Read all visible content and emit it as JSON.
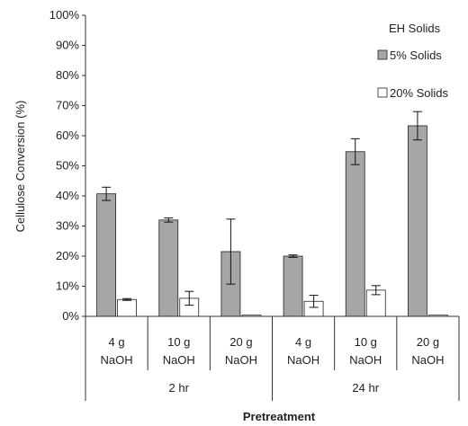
{
  "chart_data": {
    "type": "bar",
    "title": "",
    "ylabel": "Cellulose Conversion (%)",
    "xlabel": "Pretreatment",
    "ylim": [
      0,
      100
    ],
    "yticks": [
      "0%",
      "10%",
      "20%",
      "30%",
      "40%",
      "50%",
      "60%",
      "70%",
      "80%",
      "90%",
      "100%"
    ],
    "categories": [
      {
        "line1": "4 g",
        "line2": "NaOH"
      },
      {
        "line1": "10 g",
        "line2": "NaOH"
      },
      {
        "line1": "20 g",
        "line2": "NaOH"
      },
      {
        "line1": "4 g",
        "line2": "NaOH"
      },
      {
        "line1": "10 g",
        "line2": "NaOH"
      },
      {
        "line1": "20 g",
        "line2": "NaOH"
      }
    ],
    "groups": [
      {
        "label": "2 hr",
        "categories": [
          0,
          1,
          2
        ]
      },
      {
        "label": "24 hr",
        "categories": [
          3,
          4,
          5
        ]
      }
    ],
    "legend": {
      "title": "EH Solids",
      "position": "top-right"
    },
    "series": [
      {
        "name": "5% Solids",
        "color": "#a6a6a6",
        "values": [
          40.7,
          32.0,
          21.5,
          20.0,
          54.7,
          63.3
        ],
        "errors": [
          2.2,
          0.7,
          10.8,
          0.4,
          4.3,
          4.7
        ]
      },
      {
        "name": "20% Solids",
        "color": "#ffffff",
        "values": [
          5.6,
          6.0,
          0.4,
          5.0,
          8.7,
          0.4
        ],
        "errors": [
          0.3,
          2.3,
          0.0,
          2.0,
          1.5,
          0.0
        ]
      }
    ]
  }
}
